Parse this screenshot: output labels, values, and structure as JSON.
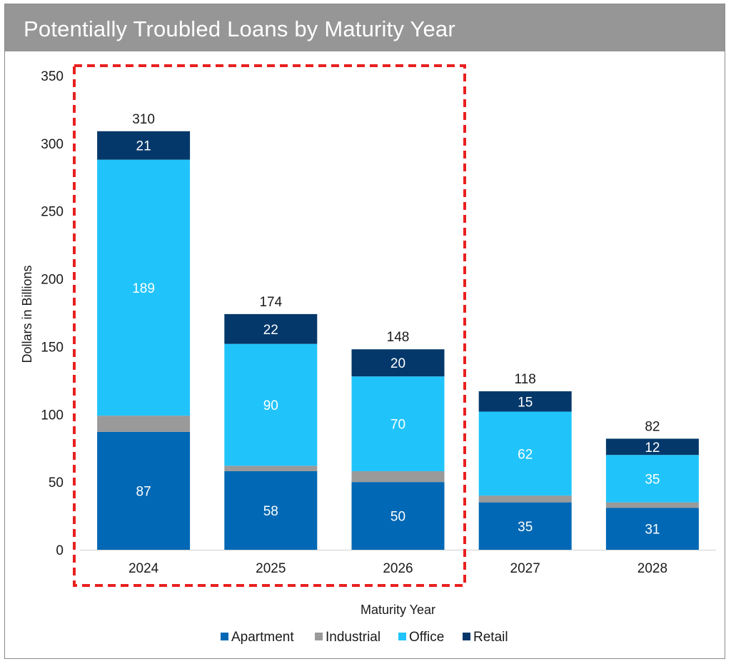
{
  "title": "Potentially Troubled Loans by Maturity Year",
  "colors": {
    "apartment": "#0068b4",
    "industrial": "#9a9a9a",
    "office": "#21c4fa",
    "retail": "#04386a",
    "highlight": "#e8201f",
    "title_bg": "#969696"
  },
  "chart_data": {
    "type": "bar",
    "stacked": true,
    "categories": [
      "2024",
      "2025",
      "2026",
      "2027",
      "2028"
    ],
    "series": [
      {
        "name": "Apartment",
        "values": [
          87,
          58,
          50,
          35,
          31
        ],
        "labels": [
          "87",
          "58",
          "50",
          "35",
          "31"
        ]
      },
      {
        "name": "Industrial",
        "values": [
          12,
          4,
          8,
          5,
          4
        ],
        "labels": [
          "",
          "",
          "",
          "",
          ""
        ]
      },
      {
        "name": "Office",
        "values": [
          189,
          90,
          70,
          62,
          35
        ],
        "labels": [
          "189",
          "90",
          "70",
          "62",
          "35"
        ]
      },
      {
        "name": "Retail",
        "values": [
          21,
          22,
          20,
          15,
          12
        ],
        "labels": [
          "21",
          "22",
          "20",
          "15",
          "12"
        ]
      }
    ],
    "totals": [
      "310",
      "174",
      "148",
      "118",
      "82"
    ],
    "xlabel": "Maturity Year",
    "ylabel": "Dollars in Billions",
    "ylim": [
      0,
      350
    ],
    "yticks": [
      0,
      50,
      100,
      150,
      200,
      250,
      300,
      350
    ],
    "grid": false,
    "legend": "bottom",
    "highlight": {
      "categories": [
        "2024",
        "2025",
        "2026"
      ],
      "style": "red dashed box"
    }
  }
}
